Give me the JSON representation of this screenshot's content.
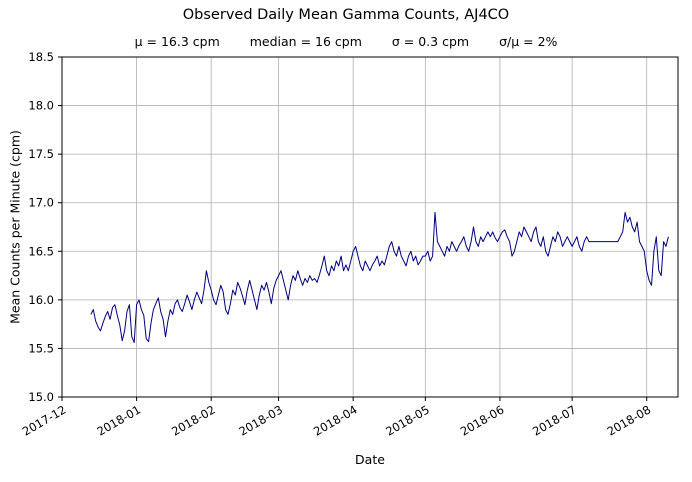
{
  "title": "Observed Daily Mean Gamma Counts, AJ4CO",
  "stats": {
    "mu": "μ = 16.3 cpm",
    "median": "median = 16 cpm",
    "sigma": "σ = 0.3 cpm",
    "ratio": "σ/μ = 2%"
  },
  "chart_data": {
    "type": "line",
    "title": "Observed Daily Mean Gamma Counts, AJ4CO",
    "subtitle": "μ = 16.3 cpm   median = 16 cpm   σ = 0.3 cpm   σ/μ = 2%",
    "xlabel": "Date",
    "ylabel": "Mean Counts per Minute (cpm)",
    "grid": true,
    "legend": "none",
    "line_color": "#000080",
    "grid_color": "#b0b0b0",
    "ylim": [
      15.0,
      18.5
    ],
    "yticks": [
      "15.0",
      "15.5",
      "16.0",
      "16.5",
      "17.0",
      "17.5",
      "18.0",
      "18.5"
    ],
    "x_domain_days": [
      0,
      256
    ],
    "xticks": [
      {
        "label": "2017-12",
        "day": 0
      },
      {
        "label": "2018-01",
        "day": 31
      },
      {
        "label": "2018-02",
        "day": 62
      },
      {
        "label": "2018-03",
        "day": 90
      },
      {
        "label": "2018-04",
        "day": 121
      },
      {
        "label": "2018-05",
        "day": 151
      },
      {
        "label": "2018-06",
        "day": 182
      },
      {
        "label": "2018-07",
        "day": 212
      },
      {
        "label": "2018-08",
        "day": 243
      }
    ],
    "series_start_date": "2017-12-13",
    "series_start_day": 12,
    "values": [
      15.85,
      15.9,
      15.78,
      15.72,
      15.68,
      15.76,
      15.83,
      15.88,
      15.8,
      15.92,
      15.95,
      15.84,
      15.74,
      15.58,
      15.68,
      15.88,
      15.95,
      15.62,
      15.56,
      15.95,
      16.0,
      15.9,
      15.84,
      15.6,
      15.57,
      15.76,
      15.9,
      15.96,
      16.02,
      15.88,
      15.8,
      15.62,
      15.78,
      15.9,
      15.85,
      15.96,
      16.0,
      15.92,
      15.88,
      15.96,
      16.05,
      15.98,
      15.9,
      16.0,
      16.08,
      16.02,
      15.96,
      16.1,
      16.3,
      16.18,
      16.1,
      16.0,
      15.95,
      16.05,
      16.15,
      16.08,
      15.9,
      15.85,
      15.96,
      16.1,
      16.05,
      16.18,
      16.12,
      16.04,
      15.95,
      16.1,
      16.2,
      16.1,
      16.0,
      15.9,
      16.05,
      16.15,
      16.1,
      16.18,
      16.08,
      15.96,
      16.12,
      16.2,
      16.25,
      16.3,
      16.2,
      16.1,
      16.0,
      16.15,
      16.25,
      16.2,
      16.3,
      16.22,
      16.15,
      16.22,
      16.18,
      16.25,
      16.2,
      16.22,
      16.18,
      16.26,
      16.35,
      16.45,
      16.3,
      16.25,
      16.35,
      16.3,
      16.4,
      16.35,
      16.45,
      16.3,
      16.36,
      16.3,
      16.4,
      16.5,
      16.55,
      16.45,
      16.35,
      16.3,
      16.4,
      16.35,
      16.3,
      16.36,
      16.4,
      16.45,
      16.35,
      16.4,
      16.36,
      16.45,
      16.55,
      16.6,
      16.5,
      16.45,
      16.55,
      16.45,
      16.4,
      16.35,
      16.45,
      16.5,
      16.4,
      16.45,
      16.36,
      16.4,
      16.45,
      16.45,
      16.5,
      16.4,
      16.45,
      16.9,
      16.6,
      16.55,
      16.5,
      16.45,
      16.55,
      16.5,
      16.6,
      16.55,
      16.5,
      16.56,
      16.6,
      16.65,
      16.55,
      16.5,
      16.6,
      16.75,
      16.6,
      16.55,
      16.65,
      16.6,
      16.65,
      16.7,
      16.65,
      16.7,
      16.64,
      16.6,
      16.65,
      16.7,
      16.72,
      16.65,
      16.6,
      16.45,
      16.5,
      16.6,
      16.7,
      16.65,
      16.75,
      16.7,
      16.65,
      16.6,
      16.7,
      16.75,
      16.6,
      16.55,
      16.65,
      16.5,
      16.45,
      16.55,
      16.65,
      16.6,
      16.7,
      16.65,
      16.55,
      16.6,
      16.65,
      16.6,
      16.55,
      16.6,
      16.65,
      16.55,
      16.5,
      16.6,
      16.65,
      16.6,
      16.6,
      16.6,
      16.6,
      16.6,
      16.6,
      16.6,
      16.6,
      16.6,
      16.6,
      16.6,
      16.6,
      16.6,
      16.65,
      16.7,
      16.9,
      16.8,
      16.85,
      16.75,
      16.7,
      16.8,
      16.6,
      16.55,
      16.5,
      16.3,
      16.2,
      16.15,
      16.5,
      16.65,
      16.3,
      16.25,
      16.6,
      16.55,
      16.65
    ]
  }
}
